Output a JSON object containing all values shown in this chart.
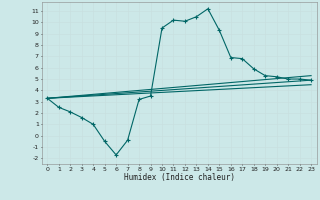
{
  "xlabel": "Humidex (Indice chaleur)",
  "bg_color": "#cce8e8",
  "grid_color": "#c8e0e0",
  "line_color": "#006666",
  "xlim": [
    -0.5,
    23.5
  ],
  "ylim": [
    -2.5,
    11.8
  ],
  "xticks": [
    0,
    1,
    2,
    3,
    4,
    5,
    6,
    7,
    8,
    9,
    10,
    11,
    12,
    13,
    14,
    15,
    16,
    17,
    18,
    19,
    20,
    21,
    22,
    23
  ],
  "yticks": [
    -2,
    -1,
    0,
    1,
    2,
    3,
    4,
    5,
    6,
    7,
    8,
    9,
    10,
    11
  ],
  "main_line_x": [
    0,
    1,
    2,
    3,
    4,
    5,
    6,
    7,
    8,
    9,
    10,
    11,
    12,
    13,
    14,
    15,
    16,
    17,
    18,
    19,
    20,
    21,
    22,
    23
  ],
  "main_line_y": [
    3.3,
    2.5,
    2.1,
    1.6,
    1.0,
    -0.5,
    -1.7,
    -0.4,
    3.2,
    3.5,
    9.5,
    10.2,
    10.1,
    10.5,
    11.2,
    9.3,
    6.9,
    6.8,
    5.9,
    5.3,
    5.2,
    5.0,
    5.0,
    4.9
  ],
  "line2_x": [
    0,
    23
  ],
  "line2_y": [
    3.3,
    5.3
  ],
  "line3_x": [
    0,
    23
  ],
  "line3_y": [
    3.3,
    4.9
  ],
  "line4_x": [
    0,
    23
  ],
  "line4_y": [
    3.3,
    4.5
  ]
}
